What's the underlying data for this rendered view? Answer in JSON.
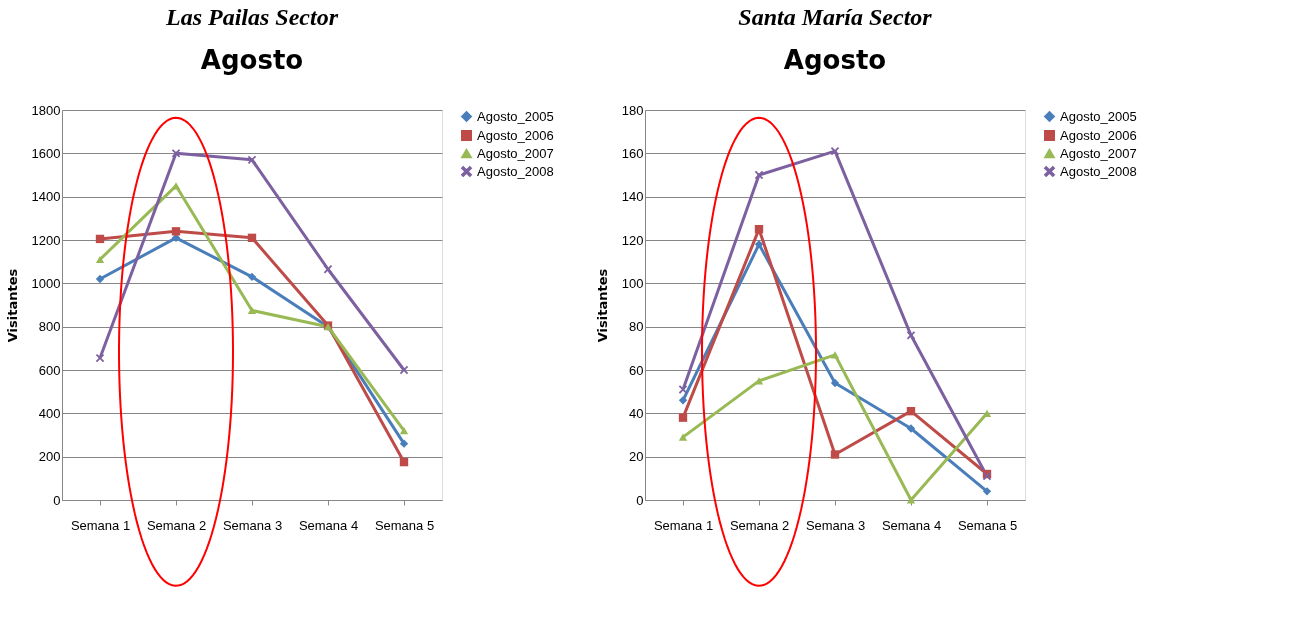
{
  "chart_data": [
    {
      "type": "line",
      "title": "Las Pailas Sector",
      "subtitle": "Agosto",
      "ylabel": "Visitantes",
      "categories": [
        "Semana 1",
        "Semana 2",
        "Semana 3",
        "Semana 4",
        "Semana 5"
      ],
      "ylim": [
        0,
        1800
      ],
      "yticks": [
        0,
        200,
        400,
        600,
        800,
        1000,
        1200,
        1400,
        1600,
        1800
      ],
      "grid": "y",
      "legend": "right",
      "series": [
        {
          "name": "Agosto_2005",
          "color": "#4a7ebb",
          "marker": "diamond",
          "values": [
            1020,
            1210,
            1030,
            800,
            260
          ]
        },
        {
          "name": "Agosto_2006",
          "color": "#be4b48",
          "marker": "square",
          "values": [
            1205,
            1240,
            1210,
            805,
            175
          ]
        },
        {
          "name": "Agosto_2007",
          "color": "#98b954",
          "marker": "triangle",
          "values": [
            1110,
            1450,
            875,
            800,
            320
          ]
        },
        {
          "name": "Agosto_2008",
          "color": "#7d60a0",
          "marker": "cross",
          "values": [
            655,
            1600,
            1570,
            1065,
            600
          ]
        }
      ]
    },
    {
      "type": "line",
      "title": "Santa María Sector",
      "subtitle": "Agosto",
      "ylabel": "Visitantes",
      "categories": [
        "Semana 1",
        "Semana 2",
        "Semana 3",
        "Semana 4",
        "Semana 5"
      ],
      "ylim": [
        0,
        180
      ],
      "yticks": [
        0,
        20,
        40,
        60,
        80,
        100,
        120,
        140,
        160,
        180
      ],
      "grid": "y",
      "legend": "right",
      "series": [
        {
          "name": "Agosto_2005",
          "color": "#4a7ebb",
          "marker": "diamond",
          "values": [
            46,
            118,
            54,
            33,
            4
          ]
        },
        {
          "name": "Agosto_2006",
          "color": "#be4b48",
          "marker": "square",
          "values": [
            38,
            125,
            21,
            41,
            12
          ]
        },
        {
          "name": "Agosto_2007",
          "color": "#98b954",
          "marker": "triangle",
          "values": [
            29,
            55,
            67,
            0,
            40
          ]
        },
        {
          "name": "Agosto_2008",
          "color": "#7d60a0",
          "marker": "cross",
          "values": [
            51,
            150,
            161,
            76,
            11
          ]
        }
      ]
    }
  ]
}
